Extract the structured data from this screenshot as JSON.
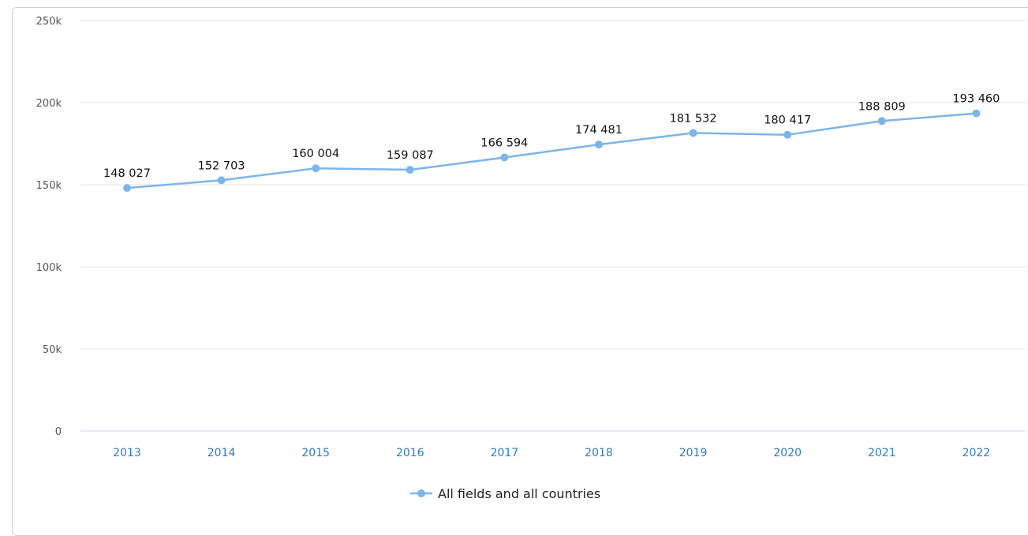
{
  "chart_data": {
    "type": "line",
    "title": "",
    "xlabel": "",
    "ylabel": "",
    "categories": [
      "2013",
      "2014",
      "2015",
      "2016",
      "2017",
      "2018",
      "2019",
      "2020",
      "2021",
      "2022"
    ],
    "series": [
      {
        "name": "All fields and all countries",
        "values": [
          148027,
          152703,
          160004,
          159087,
          166594,
          174481,
          181532,
          180417,
          188809,
          193460
        ],
        "data_labels": [
          "148 027",
          "152 703",
          "160 004",
          "159 087",
          "166 594",
          "174 481",
          "181 532",
          "180 417",
          "188 809",
          "193 460"
        ],
        "color": "#7cb5ec"
      }
    ],
    "y_ticks": [
      {
        "value": 0,
        "label": "0"
      },
      {
        "value": 50000,
        "label": "50k"
      },
      {
        "value": 100000,
        "label": "100k"
      },
      {
        "value": 150000,
        "label": "150k"
      },
      {
        "value": 200000,
        "label": "200k"
      },
      {
        "value": 250000,
        "label": "250k"
      }
    ],
    "ylim": [
      0,
      250000
    ],
    "grid": true,
    "legend_position": "bottom-center"
  },
  "colors": {
    "series": "#7cb5ec",
    "gridline": "#e6e6e6",
    "axis_line": "#ccd6eb",
    "x_tick_text": "#2f7ac4",
    "y_tick_text": "#555555"
  }
}
